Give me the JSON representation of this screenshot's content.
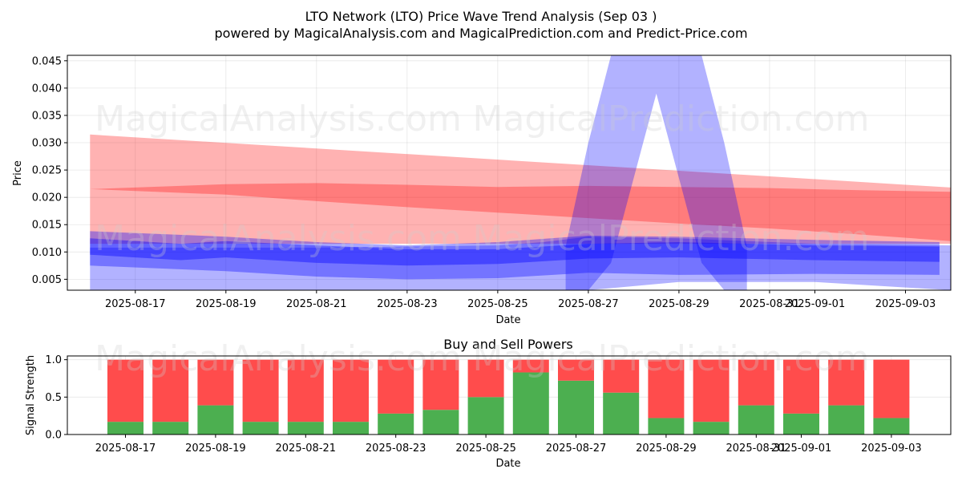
{
  "title_line1": "LTO Network (LTO) Price Wave Trend Analysis (Sep 03 )",
  "title_line2": "powered by MagicalAnalysis.com and MagicalPrediction.com and Predict-Price.com",
  "watermarks": [
    "MagicalAnalysis.com",
    "MagicalPrediction.com"
  ],
  "colors": {
    "red_band": "#ff0000",
    "blue_band": "#0000ff",
    "buy": "#4caf50",
    "sell": "#ff4c4c"
  },
  "chart_data": [
    {
      "type": "area",
      "title": "",
      "xlabel": "Date",
      "ylabel": "Price",
      "ylim": [
        0.003,
        0.046
      ],
      "xlim": [
        "2025-08-15T12:00",
        "2025-09-04"
      ],
      "yticks": [
        0.005,
        0.01,
        0.015,
        0.02,
        0.025,
        0.03,
        0.035,
        0.04,
        0.045
      ],
      "ytick_labels": [
        "0.005",
        "0.010",
        "0.015",
        "0.020",
        "0.025",
        "0.030",
        "0.035",
        "0.040",
        "0.045"
      ],
      "xticks": [
        "2025-08-17",
        "2025-08-19",
        "2025-08-21",
        "2025-08-23",
        "2025-08-25",
        "2025-08-27",
        "2025-08-29",
        "2025-08-31",
        "2025-09-01",
        "2025-09-03"
      ],
      "xtick_labels": [
        "2025-08-17",
        "2025-08-19",
        "2025-08-21",
        "2025-08-23",
        "2025-08-25",
        "2025-08-27",
        "2025-08-29",
        "2025-08-31",
        "2025-09-01",
        "2025-09-03"
      ],
      "series": [
        {
          "name": "red-wide-band",
          "color": "red",
          "opacity": 0.3,
          "x": [
            "2025-08-16",
            "2025-09-04"
          ],
          "upper": [
            0.0315,
            0.0218
          ],
          "lower": [
            0.0115,
            0.0115
          ]
        },
        {
          "name": "red-inner-band",
          "color": "red",
          "opacity": 0.3,
          "x": [
            "2025-08-16",
            "2025-08-19",
            "2025-08-21",
            "2025-08-23",
            "2025-08-25",
            "2025-08-27",
            "2025-08-29",
            "2025-08-31",
            "2025-09-02",
            "2025-09-04"
          ],
          "upper": [
            0.0215,
            0.0224,
            0.0226,
            0.0223,
            0.0219,
            0.0221,
            0.0219,
            0.0217,
            0.0213,
            0.021
          ],
          "lower": [
            0.0215,
            0.0205,
            0.0193,
            0.0182,
            0.0172,
            0.0162,
            0.0152,
            0.0143,
            0.0132,
            0.012
          ]
        },
        {
          "name": "blue-base-band",
          "color": "blue",
          "opacity": 0.3,
          "x": [
            "2025-08-16",
            "2025-08-19",
            "2025-08-21",
            "2025-08-23",
            "2025-08-25",
            "2025-08-26",
            "2025-08-27",
            "2025-08-29",
            "2025-09-01",
            "2025-09-04"
          ],
          "upper": [
            0.0108,
            0.0108,
            0.0108,
            0.011,
            0.0112,
            0.0118,
            0.0128,
            0.0125,
            0.0115,
            0.0112
          ],
          "lower": [
            0.003,
            0.003,
            0.003,
            0.003,
            0.003,
            0.003,
            0.003,
            0.0045,
            0.0045,
            0.003
          ]
        },
        {
          "name": "blue-spike-band",
          "color": "blue",
          "opacity": 0.3,
          "x": [
            "2025-08-26T12:00",
            "2025-08-27",
            "2025-08-27T12:00",
            "2025-08-28T12:00",
            "2025-08-29T12:00",
            "2025-08-30",
            "2025-08-30T12:00"
          ],
          "upper": [
            0.011,
            0.03,
            0.046,
            0.046,
            0.046,
            0.03,
            0.011
          ],
          "lower": [
            0.003,
            0.003,
            0.008,
            0.039,
            0.008,
            0.003,
            0.003
          ]
        },
        {
          "name": "blue-inner-band-1",
          "color": "blue",
          "opacity": 0.35,
          "x": [
            "2025-08-16",
            "2025-08-19",
            "2025-08-21",
            "2025-08-23",
            "2025-08-25",
            "2025-08-27",
            "2025-08-29",
            "2025-09-01",
            "2025-09-03T18:00"
          ],
          "upper": [
            0.0138,
            0.0128,
            0.0118,
            0.0112,
            0.0118,
            0.013,
            0.0128,
            0.0122,
            0.0118
          ],
          "lower": [
            0.0075,
            0.0065,
            0.0055,
            0.005,
            0.0052,
            0.0062,
            0.0058,
            0.006,
            0.0058
          ]
        },
        {
          "name": "blue-inner-band-2",
          "color": "blue",
          "opacity": 0.4,
          "x": [
            "2025-08-16",
            "2025-08-18",
            "2025-08-19",
            "2025-08-21",
            "2025-08-23",
            "2025-08-25",
            "2025-08-27",
            "2025-08-29",
            "2025-09-01",
            "2025-09-03T18:00"
          ],
          "upper": [
            0.0125,
            0.0115,
            0.012,
            0.0112,
            0.0105,
            0.0105,
            0.0115,
            0.0118,
            0.0112,
            0.011
          ],
          "lower": [
            0.0095,
            0.0085,
            0.009,
            0.008,
            0.0075,
            0.0078,
            0.0088,
            0.009,
            0.0085,
            0.0082
          ]
        }
      ]
    },
    {
      "type": "bar",
      "stacked": true,
      "title": "Buy and Sell Powers",
      "xlabel": "Date",
      "ylabel": "Signal Strength",
      "ylim": [
        0,
        1.05
      ],
      "yticks": [
        0.0,
        0.5,
        1.0
      ],
      "ytick_labels": [
        "0.0",
        "0.5",
        "1.0"
      ],
      "xticks": [
        "2025-08-17",
        "2025-08-19",
        "2025-08-21",
        "2025-08-23",
        "2025-08-25",
        "2025-08-27",
        "2025-08-29",
        "2025-08-31",
        "2025-09-01",
        "2025-09-03"
      ],
      "xtick_labels": [
        "2025-08-17",
        "2025-08-19",
        "2025-08-21",
        "2025-08-23",
        "2025-08-25",
        "2025-08-27",
        "2025-08-29",
        "2025-08-31",
        "2025-09-01",
        "2025-09-03"
      ],
      "categories": [
        "2025-08-17",
        "2025-08-18",
        "2025-08-19",
        "2025-08-20",
        "2025-08-21",
        "2025-08-22",
        "2025-08-23",
        "2025-08-24",
        "2025-08-25",
        "2025-08-26",
        "2025-08-27",
        "2025-08-28",
        "2025-08-29",
        "2025-08-30",
        "2025-08-31",
        "2025-09-01",
        "2025-09-02",
        "2025-09-03"
      ],
      "series": [
        {
          "name": "Buy",
          "color": "green",
          "values": [
            0.17,
            0.17,
            0.39,
            0.17,
            0.17,
            0.17,
            0.28,
            0.33,
            0.5,
            0.83,
            0.72,
            0.56,
            0.22,
            0.17,
            0.39,
            0.28,
            0.39,
            0.22
          ]
        },
        {
          "name": "Sell",
          "color": "red",
          "values": [
            0.83,
            0.83,
            0.61,
            0.83,
            0.83,
            0.83,
            0.72,
            0.67,
            0.5,
            0.17,
            0.28,
            0.44,
            0.78,
            0.83,
            0.61,
            0.72,
            0.61,
            0.78
          ]
        }
      ]
    }
  ]
}
